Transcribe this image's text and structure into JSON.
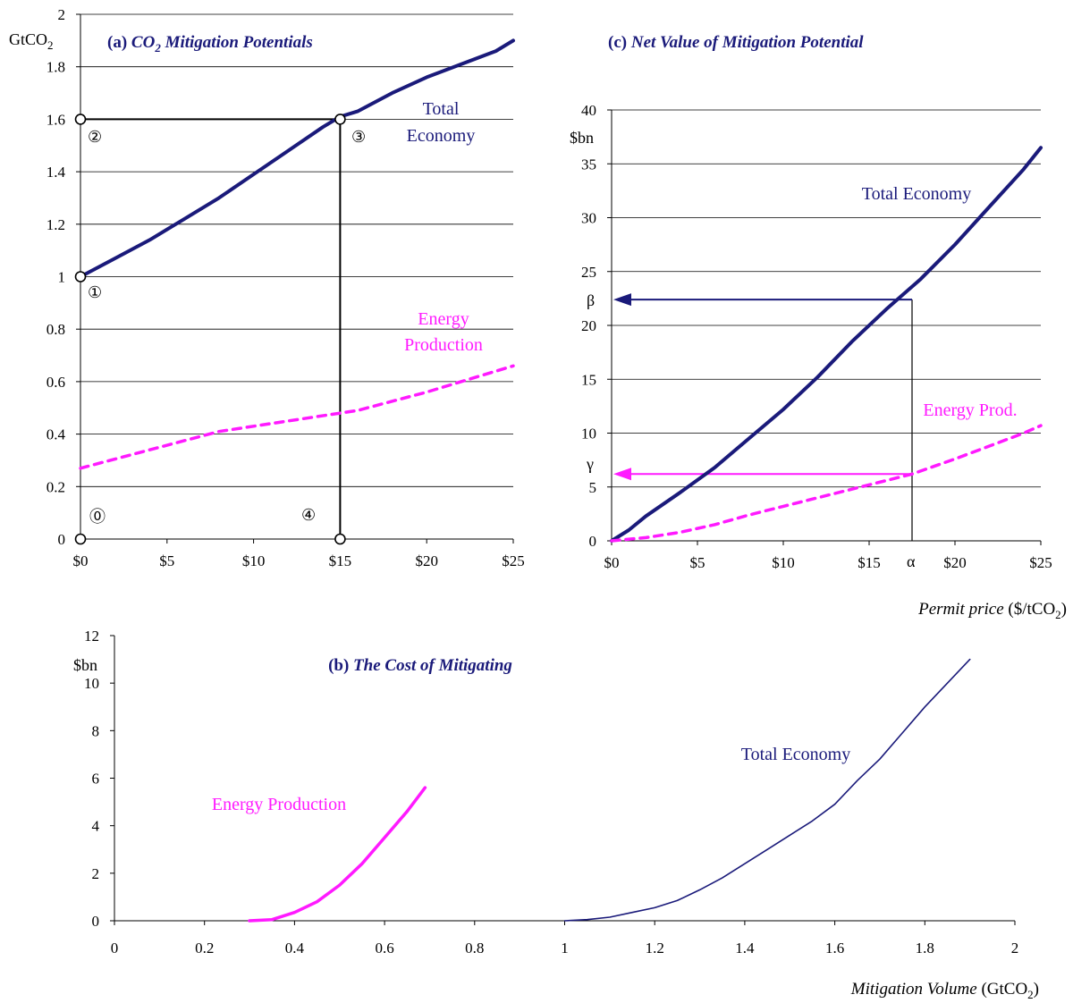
{
  "colors": {
    "total": "#1a1a7a",
    "energy": "#ff1aff",
    "axis": "#000000",
    "grid": "#000000"
  },
  "chart_data": [
    {
      "id": "a",
      "type": "line",
      "title_prefix": "(a) ",
      "title_main": "CO",
      "title_sub": "2",
      "title_rest": " Mitigation Potentials",
      "y_unit_main": "GtCO",
      "y_unit_sub": "2",
      "xlim": [
        0,
        25
      ],
      "ylim": [
        0,
        2
      ],
      "grid": true,
      "x_ticks": [
        0,
        5,
        10,
        15,
        20,
        25
      ],
      "x_tick_labels": [
        "$0",
        "$5",
        "$10",
        "$15",
        "$20",
        "$25"
      ],
      "y_ticks": [
        0,
        0.2,
        0.4,
        0.6,
        0.8,
        1,
        1.2,
        1.4,
        1.6,
        1.8,
        2
      ],
      "y_tick_labels": [
        "0",
        "0.2",
        "0.4",
        "0.6",
        "0.8",
        "1",
        "1.2",
        "1.4",
        "1.6",
        "1.8",
        "2"
      ],
      "series": [
        {
          "name": "Total Economy",
          "label_lines": [
            "Total",
            "Economy"
          ],
          "style": "solid",
          "x": [
            0,
            2,
            4,
            6,
            8,
            10,
            12,
            14,
            15,
            16,
            18,
            20,
            22,
            24,
            25
          ],
          "y": [
            1.0,
            1.07,
            1.14,
            1.22,
            1.3,
            1.39,
            1.48,
            1.57,
            1.61,
            1.63,
            1.7,
            1.76,
            1.81,
            1.86,
            1.9
          ]
        },
        {
          "name": "Energy Production",
          "label_lines": [
            "Energy",
            "Production"
          ],
          "style": "dashed",
          "x": [
            0,
            4,
            8,
            12,
            16,
            20,
            25
          ],
          "y": [
            0.27,
            0.34,
            0.41,
            0.45,
            0.49,
            0.56,
            0.66
          ]
        }
      ],
      "annotations": {
        "points": [
          {
            "x": 0,
            "y": 1.6
          },
          {
            "x": 15,
            "y": 1.6
          },
          {
            "x": 0,
            "y": 1.0
          },
          {
            "x": 0,
            "y": 0
          },
          {
            "x": 15,
            "y": 0
          }
        ],
        "labels": [
          "①",
          "②",
          "③",
          "④",
          "⓪"
        ]
      }
    },
    {
      "id": "c",
      "type": "line",
      "title_prefix": "(c) ",
      "title_rest": "Net Value of Mitigation Potential",
      "y_unit": "$bn",
      "xlabel_italic": "Permit price",
      "xlabel_unit_main": " ($/tCO",
      "xlabel_unit_sub": "2",
      "xlabel_unit_end": ")",
      "xlim": [
        0,
        25
      ],
      "ylim": [
        0,
        40
      ],
      "grid": true,
      "x_ticks": [
        0,
        5,
        10,
        15,
        20,
        25
      ],
      "x_tick_labels": [
        "$0",
        "$5",
        "$10",
        "$15",
        "$20",
        "$25"
      ],
      "y_ticks": [
        0,
        5,
        10,
        15,
        20,
        25,
        30,
        35,
        40
      ],
      "y_tick_labels": [
        "0",
        "5",
        "10",
        "15",
        "20",
        "25",
        "30",
        "35",
        "40"
      ],
      "series": [
        {
          "name": "Total Economy",
          "style": "solid",
          "x": [
            0,
            1,
            2,
            4,
            6,
            8,
            10,
            12,
            14,
            16,
            18,
            20,
            22,
            24,
            25
          ],
          "y": [
            0,
            1,
            2.3,
            4.5,
            6.8,
            9.5,
            12.2,
            15.2,
            18.5,
            21.5,
            24.3,
            27.5,
            31,
            34.5,
            36.5
          ]
        },
        {
          "name": "Energy Prod.",
          "style": "dashed",
          "x": [
            0,
            2,
            4,
            6,
            8,
            10,
            12,
            14,
            16,
            17.5,
            20,
            22,
            24,
            25
          ],
          "y": [
            0,
            0.3,
            0.8,
            1.5,
            2.4,
            3.2,
            4.0,
            4.8,
            5.6,
            6.2,
            7.6,
            8.8,
            10,
            10.7
          ]
        }
      ],
      "annotations": {
        "alpha": "α",
        "beta": "β",
        "gamma": "γ",
        "alpha_x": 17.5,
        "beta_y": 22.4,
        "gamma_y": 6.2
      }
    },
    {
      "id": "b",
      "type": "line",
      "title_prefix": "(b) ",
      "title_rest": "The Cost of Mitigating",
      "y_unit": "$bn",
      "xlabel_italic": "Mitigation Volume",
      "xlabel_unit_main": " (GtCO",
      "xlabel_unit_sub": "2",
      "xlabel_unit_end": ")",
      "xlim": [
        0,
        2
      ],
      "ylim": [
        0,
        12
      ],
      "grid": false,
      "x_ticks": [
        0,
        0.2,
        0.4,
        0.6,
        0.8,
        1,
        1.2,
        1.4,
        1.6,
        1.8,
        2
      ],
      "x_tick_labels": [
        "0",
        "0.2",
        "0.4",
        "0.6",
        "0.8",
        "1",
        "1.2",
        "1.4",
        "1.6",
        "1.8",
        "2"
      ],
      "y_ticks": [
        0,
        2,
        4,
        6,
        8,
        10,
        12
      ],
      "y_tick_labels": [
        "0",
        "2",
        "4",
        "6",
        "8",
        "10",
        "12"
      ],
      "series": [
        {
          "name": "Energy Production",
          "style": "solid-thick",
          "x": [
            0.3,
            0.35,
            0.4,
            0.45,
            0.5,
            0.55,
            0.6,
            0.65,
            0.69
          ],
          "y": [
            0,
            0.05,
            0.35,
            0.8,
            1.5,
            2.4,
            3.5,
            4.6,
            5.6
          ]
        },
        {
          "name": "Total Economy",
          "style": "solid-thin",
          "x": [
            1.0,
            1.05,
            1.1,
            1.15,
            1.2,
            1.25,
            1.3,
            1.35,
            1.4,
            1.45,
            1.5,
            1.55,
            1.6,
            1.65,
            1.7,
            1.75,
            1.8,
            1.85,
            1.9
          ],
          "y": [
            0,
            0.05,
            0.15,
            0.35,
            0.55,
            0.85,
            1.3,
            1.8,
            2.4,
            3.0,
            3.6,
            4.2,
            4.9,
            5.9,
            6.8,
            7.9,
            9.0,
            10.0,
            11.0
          ]
        }
      ]
    }
  ]
}
